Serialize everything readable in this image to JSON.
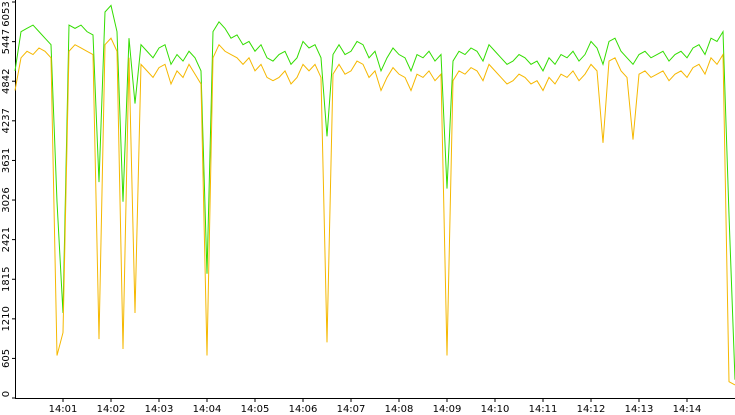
{
  "chart_data": {
    "type": "line",
    "x": [
      0,
      0.125,
      0.25,
      0.375,
      0.5,
      0.625,
      0.75,
      0.875,
      1,
      1.125,
      1.25,
      1.375,
      1.5,
      1.625,
      1.75,
      1.875,
      2,
      2.125,
      2.25,
      2.375,
      2.5,
      2.625,
      2.75,
      2.875,
      3,
      3.125,
      3.25,
      3.375,
      3.5,
      3.625,
      3.75,
      3.875,
      4,
      4.125,
      4.25,
      4.375,
      4.5,
      4.625,
      4.75,
      4.875,
      5,
      5.125,
      5.25,
      5.375,
      5.5,
      5.625,
      5.75,
      5.875,
      6,
      6.125,
      6.25,
      6.375,
      6.5,
      6.625,
      6.75,
      6.875,
      7,
      7.125,
      7.25,
      7.375,
      7.5,
      7.625,
      7.75,
      7.875,
      8,
      8.125,
      8.25,
      8.375,
      8.5,
      8.625,
      8.75,
      8.875,
      9,
      9.125,
      9.25,
      9.375,
      9.5,
      9.625,
      9.75,
      9.875,
      10,
      10.125,
      10.25,
      10.375,
      10.5,
      10.625,
      10.75,
      10.875,
      11,
      11.125,
      11.25,
      11.375,
      11.5,
      11.625,
      11.75,
      11.875,
      12,
      12.125,
      12.25,
      12.375,
      12.5,
      12.625,
      12.75,
      12.875,
      13,
      13.125,
      13.25,
      13.375,
      13.5,
      13.625,
      13.75,
      13.875,
      14,
      14.125,
      14.25,
      14.375,
      14.5,
      14.625,
      14.75,
      14.875,
      15
    ],
    "series": [
      {
        "color": "#33dd00",
        "values": [
          5000,
          5600,
          5650,
          5700,
          5600,
          5500,
          5400,
          3000,
          1300,
          5700,
          5650,
          5700,
          5600,
          5550,
          3300,
          5900,
          6000,
          5600,
          3000,
          5500,
          4500,
          5400,
          5300,
          5200,
          5350,
          5400,
          5100,
          5250,
          5150,
          5300,
          5200,
          5000,
          1900,
          5600,
          5750,
          5650,
          5500,
          5550,
          5400,
          5450,
          5300,
          5400,
          5200,
          5150,
          5250,
          5300,
          5100,
          5200,
          5450,
          5350,
          5400,
          5200,
          4000,
          5250,
          5400,
          5250,
          5300,
          5450,
          5400,
          5200,
          5300,
          5000,
          5200,
          5350,
          5250,
          5200,
          5000,
          5250,
          5200,
          5300,
          5150,
          5250,
          3200,
          5150,
          5300,
          5250,
          5350,
          5300,
          5150,
          5400,
          5300,
          5200,
          5100,
          5150,
          5250,
          5200,
          5100,
          5150,
          5000,
          5200,
          5100,
          5250,
          5200,
          5300,
          5150,
          5250,
          5450,
          5350,
          5100,
          5450,
          5500,
          5300,
          5200,
          5100,
          5250,
          5300,
          5200,
          5250,
          5300,
          5150,
          5250,
          5300,
          5200,
          5350,
          5400,
          5250,
          5500,
          5450,
          5600,
          2800,
          280
        ]
      },
      {
        "color": "#f5b800",
        "values": [
          4700,
          5200,
          5300,
          5250,
          5350,
          5300,
          5200,
          650,
          1000,
          5300,
          5400,
          5350,
          5300,
          5250,
          900,
          5400,
          5500,
          5300,
          750,
          5200,
          1300,
          5100,
          5000,
          4900,
          5050,
          5100,
          4800,
          5000,
          4900,
          5100,
          4950,
          4800,
          650,
          5200,
          5400,
          5300,
          5250,
          5200,
          5100,
          5200,
          5000,
          5100,
          4900,
          4850,
          4900,
          5000,
          4800,
          4900,
          5100,
          5000,
          5100,
          4900,
          850,
          4950,
          5100,
          4950,
          5000,
          5150,
          5100,
          4900,
          5000,
          4700,
          4900,
          5050,
          4950,
          4900,
          4700,
          4950,
          4900,
          5000,
          4850,
          4950,
          650,
          4850,
          5000,
          4950,
          5050,
          5000,
          4850,
          5100,
          5000,
          4900,
          4800,
          4850,
          4950,
          4900,
          4800,
          4850,
          4700,
          4900,
          4800,
          4950,
          4900,
          5000,
          4850,
          4950,
          5100,
          5000,
          3900,
          5150,
          5200,
          5000,
          4900,
          3950,
          4950,
          5000,
          4900,
          4950,
          5000,
          4850,
          4950,
          5000,
          4900,
          5050,
          5100,
          4950,
          5200,
          5100,
          5250,
          250,
          200
        ]
      }
    ],
    "xlim": [
      0,
      15
    ],
    "xticks": [
      {
        "value": 1,
        "label": "14:01"
      },
      {
        "value": 2,
        "label": "14:02"
      },
      {
        "value": 3,
        "label": "14:03"
      },
      {
        "value": 4,
        "label": "14:04"
      },
      {
        "value": 5,
        "label": "14:05"
      },
      {
        "value": 6,
        "label": "14:06"
      },
      {
        "value": 7,
        "label": "14:07"
      },
      {
        "value": 8,
        "label": "14:08"
      },
      {
        "value": 9,
        "label": "14:09"
      },
      {
        "value": 10,
        "label": "14:10"
      },
      {
        "value": 11,
        "label": "14:11"
      },
      {
        "value": 12,
        "label": "14:12"
      },
      {
        "value": 13,
        "label": "14:13"
      },
      {
        "value": 14,
        "label": "14:14"
      }
    ],
    "ylim": [
      0,
      6053
    ],
    "yticks": [
      0,
      605,
      1210,
      1815,
      2421,
      3026,
      3631,
      4237,
      4842,
      5447,
      6053
    ]
  }
}
